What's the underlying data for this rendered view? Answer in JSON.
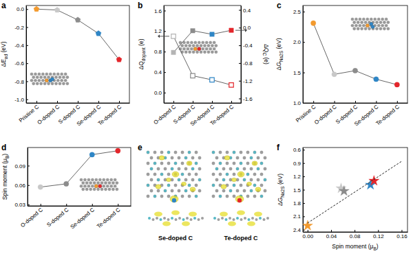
{
  "chart_data": [
    {
      "title": "a",
      "type": "line",
      "categories": [
        "Pristine C",
        "O-doped C",
        "S-doped C",
        "Se-doped C",
        "Te-doped C"
      ],
      "ylabel": {
        "text": "ΔE",
        "sub": "ad",
        "suffix": " (eV)"
      },
      "ylim": [
        -1.04,
        0.04
      ],
      "yticks": [
        {
          "value": 0,
          "label": "0.0"
        },
        -0.2,
        -0.4,
        -0.6,
        -0.8,
        {
          "value": -1,
          "label": "-1.0"
        }
      ],
      "series": [
        {
          "values": [
            0.0,
            -0.01,
            -0.12,
            -0.27,
            -0.56
          ],
          "color": "#666666",
          "colors": [
            "#f39a2e",
            "#c8c8c8",
            "#8c8c8c",
            "#2f86c6",
            "#e3262b"
          ],
          "marker": "pentagon"
        }
      ]
    },
    {
      "title": "b",
      "type": "line",
      "categories": [
        "O-doped C",
        "S-doped C",
        "Se-doped C",
        "Te-doped C"
      ],
      "ylabel": {
        "text": "ΔQ",
        "sub": "dopant",
        "suffix": " (e)"
      },
      "ylim": [
        -0.2,
        1.7
      ],
      "yticks": [
        {
          "value": 0,
          "label": "0.0"
        },
        0.4,
        0.8,
        1.2,
        1.6
      ],
      "y2label": {
        "text": "ΔQ",
        "sub": "C",
        "suffix": " (e)"
      },
      "y2lim": [
        -1.7,
        0.5
      ],
      "y2ticks": [
        0.4,
        {
          "value": 0,
          "label": "0.0"
        },
        -0.4,
        -0.8,
        -1.2,
        -1.6
      ],
      "series": [
        {
          "values": [
            1.1,
            0.33,
            0.25,
            0.15
          ],
          "color": "#666666",
          "colors": [
            "#b4b4b4",
            "#8c8c8c",
            "#2f86c6",
            "#e3262b"
          ],
          "marker": "square_open"
        },
        {
          "values": [
            -0.56,
            -0.07,
            -0.15,
            -0.06
          ],
          "color": "#666666",
          "axis": "y2",
          "colors": [
            "#b4b4b4",
            "#8c8c8c",
            "#2f86c6",
            "#e3262b"
          ],
          "marker": "square"
        }
      ]
    },
    {
      "title": "c",
      "type": "line",
      "categories": [
        "Pristine C",
        "O-doped C",
        "S-doped C",
        "Se-doped C",
        "Te-doped C"
      ],
      "ylabel": {
        "text": "ΔG",
        "sub": "Na2S",
        "suffix": " (eV)"
      },
      "ylim": [
        1.0,
        2.6
      ],
      "yticks": [
        {
          "value": 1,
          "label": "1.0"
        },
        1.5,
        {
          "value": 2,
          "label": "2.0"
        },
        2.5
      ],
      "series": [
        {
          "values": [
            2.31,
            1.47,
            1.53,
            1.39,
            1.3
          ],
          "color": "#666666",
          "colors": [
            "#f39a2e",
            "#c8c8c8",
            "#8c8c8c",
            "#2f86c6",
            "#e3262b"
          ],
          "marker": "circle"
        }
      ]
    },
    {
      "title": "d",
      "type": "line",
      "categories": [
        "O-doped C",
        "S-doped C",
        "Se-doped C",
        "Te-doped C"
      ],
      "ylabel": {
        "text": "Spin moment (μ",
        "sub": "B",
        "suffix": ")"
      },
      "ylim": [
        0.028,
        0.118
      ],
      "yticks": [
        0.03,
        0.06,
        0.09
      ],
      "series": [
        {
          "values": [
            0.057,
            0.062,
            0.107,
            0.113
          ],
          "color": "#666666",
          "colors": [
            "#c8c8c8",
            "#8c8c8c",
            "#2f86c6",
            "#e3262b"
          ],
          "marker": "circle"
        }
      ]
    },
    {
      "title": "f",
      "type": "scatter",
      "xlabel": {
        "text": "Spin moment (μ",
        "sub": "B",
        "suffix": ")"
      },
      "ylabel": {
        "text": "ΔG",
        "sub": "Na2S",
        "suffix": " (eV)"
      },
      "xlim": [
        -0.008,
        0.17
      ],
      "xticks": [
        {
          "value": 0,
          "label": "0.00"
        },
        0.04,
        0.08,
        0.12,
        0.16
      ],
      "ylim": [
        2.45,
        0.55
      ],
      "yticks": [
        0.6,
        0.9,
        1.2,
        1.5,
        1.8,
        2.1,
        2.4
      ],
      "series": [
        {
          "type": "scatter",
          "marker": "star",
          "x": [
            0.0,
            0.057,
            0.062,
            0.107,
            0.113
          ],
          "values": [
            2.31,
            1.47,
            1.53,
            1.39,
            1.3
          ],
          "colors": [
            "#f39a2e",
            "#c8c8c8",
            "#8c8c8c",
            "#2f86c6",
            "#e3262b"
          ]
        },
        {
          "type": "line",
          "line_style": "dashed",
          "color": "#222222",
          "x": [
            0.0,
            0.16
          ],
          "values": [
            2.25,
            0.86
          ]
        }
      ]
    }
  ],
  "panel_e": {
    "title": "e",
    "captions": [
      "Se-doped C",
      "Te-doped C"
    ]
  }
}
